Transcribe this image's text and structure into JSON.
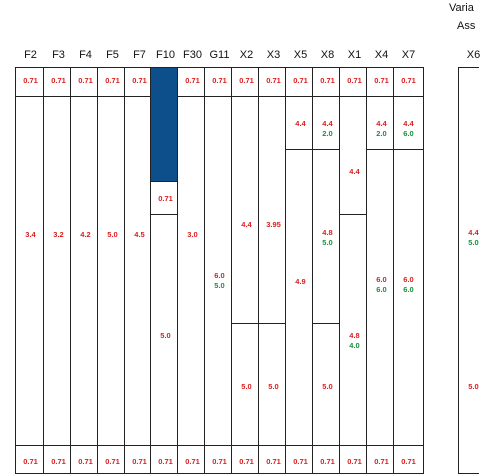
{
  "corner_text": [
    "Varia",
    "Ass"
  ],
  "colors": {
    "red": "#dd1c1c",
    "green": "#17923a",
    "fill": "#0d4f8a",
    "border": "#222222"
  },
  "columns": [
    {
      "label": "F2",
      "labels": [
        {
          "text": "0.71",
          "color": "red",
          "pos": 0.03
        },
        {
          "text": "3.4",
          "color": "red",
          "pos": 0.41
        },
        {
          "text": "0.71",
          "color": "red",
          "pos": 0.97
        }
      ],
      "lines": [
        0.07,
        0.93
      ]
    },
    {
      "label": "F3",
      "labels": [
        {
          "text": "0.71",
          "color": "red",
          "pos": 0.03
        },
        {
          "text": "3.2",
          "color": "red",
          "pos": 0.41
        },
        {
          "text": "0.71",
          "color": "red",
          "pos": 0.97
        }
      ],
      "lines": [
        0.07,
        0.93
      ]
    },
    {
      "label": "F4",
      "labels": [
        {
          "text": "0.71",
          "color": "red",
          "pos": 0.03
        },
        {
          "text": "4.2",
          "color": "red",
          "pos": 0.41
        },
        {
          "text": "0.71",
          "color": "red",
          "pos": 0.97
        }
      ],
      "lines": [
        0.07,
        0.93
      ]
    },
    {
      "label": "F5",
      "labels": [
        {
          "text": "0.71",
          "color": "red",
          "pos": 0.03
        },
        {
          "text": "5.0",
          "color": "red",
          "pos": 0.41
        },
        {
          "text": "0.71",
          "color": "red",
          "pos": 0.97
        }
      ],
      "lines": [
        0.07,
        0.93
      ]
    },
    {
      "label": "F7",
      "labels": [
        {
          "text": "0.71",
          "color": "red",
          "pos": 0.03
        },
        {
          "text": "4.5",
          "color": "red",
          "pos": 0.41
        },
        {
          "text": "0.71",
          "color": "red",
          "pos": 0.97
        }
      ],
      "lines": [
        0.07,
        0.93
      ]
    },
    {
      "label": "F10",
      "fill_to": 0.28,
      "labels": [
        {
          "text": "0.71",
          "color": "red",
          "pos": 0.32
        },
        {
          "text": "5.0",
          "color": "red",
          "pos": 0.66
        },
        {
          "text": "0.71",
          "color": "red",
          "pos": 0.97
        }
      ],
      "lines": [
        0.28,
        0.36,
        0.93
      ]
    },
    {
      "label": "F30",
      "labels": [
        {
          "text": "0.71",
          "color": "red",
          "pos": 0.03
        },
        {
          "text": "3.0",
          "color": "red",
          "pos": 0.41
        },
        {
          "text": "0.71",
          "color": "red",
          "pos": 0.97
        }
      ],
      "lines": [
        0.07,
        0.93
      ]
    },
    {
      "label": "G11",
      "labels": [
        {
          "text": "0.71",
          "color": "red",
          "pos": 0.03
        },
        {
          "text": "6.0",
          "color": "red",
          "pos": 0.51
        },
        {
          "text": "5.0",
          "color": "green",
          "pos": 0.535
        },
        {
          "text": "0.71",
          "color": "red",
          "pos": 0.97
        }
      ],
      "lines": [
        0.07,
        0.93
      ]
    },
    {
      "label": "X2",
      "labels": [
        {
          "text": "0.71",
          "color": "red",
          "pos": 0.03
        },
        {
          "text": "4.4",
          "color": "red",
          "pos": 0.385
        },
        {
          "text": "5.0",
          "color": "red",
          "pos": 0.785
        },
        {
          "text": "0.71",
          "color": "red",
          "pos": 0.97
        }
      ],
      "lines": [
        0.07,
        0.63,
        0.93
      ]
    },
    {
      "label": "X3",
      "labels": [
        {
          "text": "0.71",
          "color": "red",
          "pos": 0.03
        },
        {
          "text": "3.95",
          "color": "red",
          "pos": 0.385
        },
        {
          "text": "5.0",
          "color": "red",
          "pos": 0.785
        },
        {
          "text": "0.71",
          "color": "red",
          "pos": 0.97
        }
      ],
      "lines": [
        0.07,
        0.63,
        0.93
      ]
    },
    {
      "label": "X5",
      "labels": [
        {
          "text": "0.71",
          "color": "red",
          "pos": 0.03
        },
        {
          "text": "4.4",
          "color": "red",
          "pos": 0.135
        },
        {
          "text": "4.9",
          "color": "red",
          "pos": 0.525
        },
        {
          "text": "0.71",
          "color": "red",
          "pos": 0.97
        }
      ],
      "lines": [
        0.07,
        0.2,
        0.93
      ]
    },
    {
      "label": "X8",
      "labels": [
        {
          "text": "0.71",
          "color": "red",
          "pos": 0.03
        },
        {
          "text": "4.4",
          "color": "red",
          "pos": 0.135
        },
        {
          "text": "2.0",
          "color": "green",
          "pos": 0.16
        },
        {
          "text": "4.8",
          "color": "red",
          "pos": 0.405
        },
        {
          "text": "5.0",
          "color": "green",
          "pos": 0.43
        },
        {
          "text": "5.0",
          "color": "red",
          "pos": 0.785
        },
        {
          "text": "0.71",
          "color": "red",
          "pos": 0.97
        }
      ],
      "lines": [
        0.07,
        0.2,
        0.63,
        0.93
      ]
    },
    {
      "label": "X1",
      "labels": [
        {
          "text": "0.71",
          "color": "red",
          "pos": 0.03
        },
        {
          "text": "4.4",
          "color": "red",
          "pos": 0.255
        },
        {
          "text": "4.8",
          "color": "red",
          "pos": 0.66
        },
        {
          "text": "4.0",
          "color": "green",
          "pos": 0.685
        },
        {
          "text": "0.71",
          "color": "red",
          "pos": 0.97
        }
      ],
      "lines": [
        0.07,
        0.36,
        0.93
      ]
    },
    {
      "label": "X4",
      "labels": [
        {
          "text": "0.71",
          "color": "red",
          "pos": 0.03
        },
        {
          "text": "4.4",
          "color": "red",
          "pos": 0.135
        },
        {
          "text": "2.0",
          "color": "green",
          "pos": 0.16
        },
        {
          "text": "6.0",
          "color": "red",
          "pos": 0.52
        },
        {
          "text": "6.0",
          "color": "green",
          "pos": 0.545
        },
        {
          "text": "0.71",
          "color": "red",
          "pos": 0.97
        }
      ],
      "lines": [
        0.07,
        0.2,
        0.93
      ]
    },
    {
      "label": "X7",
      "labels": [
        {
          "text": "0.71",
          "color": "red",
          "pos": 0.03
        },
        {
          "text": "4.4",
          "color": "red",
          "pos": 0.135
        },
        {
          "text": "6.0",
          "color": "green",
          "pos": 0.16
        },
        {
          "text": "6.0",
          "color": "red",
          "pos": 0.52
        },
        {
          "text": "6.0",
          "color": "green",
          "pos": 0.545
        },
        {
          "text": "0.71",
          "color": "red",
          "pos": 0.97
        }
      ],
      "lines": [
        0.07,
        0.2,
        0.93
      ]
    },
    {
      "label": "X6",
      "partial": true,
      "labels": [
        {
          "text": "4.4",
          "color": "red",
          "pos": 0.405
        },
        {
          "text": "5.0",
          "color": "green",
          "pos": 0.43
        },
        {
          "text": "5.0",
          "color": "red",
          "pos": 0.785
        }
      ],
      "lines": []
    }
  ]
}
